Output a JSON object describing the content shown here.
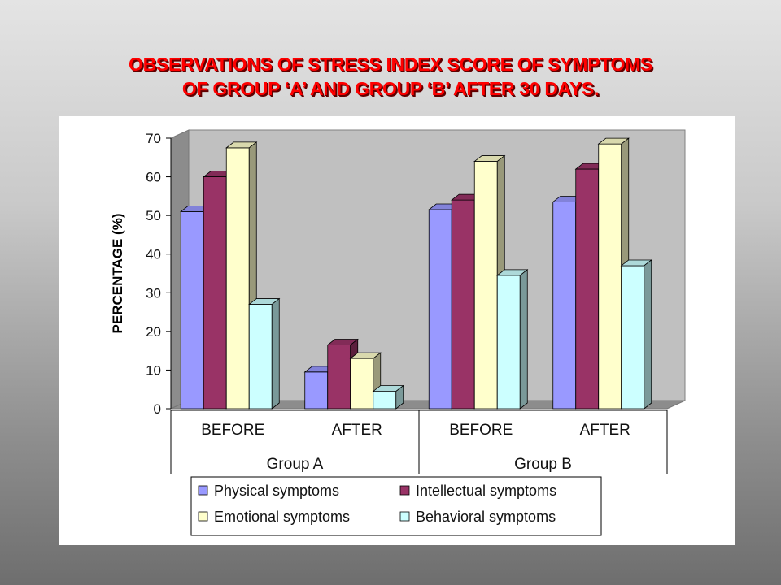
{
  "title": {
    "line1": "OBSERVATIONS OF STRESS INDEX SCORE OF SYMPTOMS",
    "line2": "OF GROUP ‘A’ AND GROUP ‘B’ AFTER 30 DAYS."
  },
  "chart_data": {
    "type": "bar",
    "title": "",
    "ylabel": "PERCENTAGE (%)",
    "xlabel": "",
    "ylim": [
      0,
      70
    ],
    "yticks": [
      0,
      10,
      20,
      30,
      40,
      50,
      60,
      70
    ],
    "grid": false,
    "legend_position": "bottom",
    "categories": [
      "BEFORE",
      "AFTER",
      "BEFORE",
      "AFTER"
    ],
    "groups": [
      {
        "label": "Group A",
        "categories": [
          "BEFORE",
          "AFTER"
        ]
      },
      {
        "label": "Group B",
        "categories": [
          "BEFORE",
          "AFTER"
        ]
      }
    ],
    "series": [
      {
        "name": "Physical symptoms",
        "color": "#9999ff",
        "values": [
          51,
          9.5,
          51.5,
          53.5
        ]
      },
      {
        "name": "Intellectual symptoms",
        "color": "#993366",
        "values": [
          60,
          16.5,
          54,
          62
        ]
      },
      {
        "name": "Emotional symptoms",
        "color": "#ffffcc",
        "values": [
          67.5,
          13,
          64,
          68.5
        ]
      },
      {
        "name": "Behavioral symptoms",
        "color": "#ccffff",
        "values": [
          27,
          4.5,
          34.5,
          37
        ]
      }
    ]
  }
}
